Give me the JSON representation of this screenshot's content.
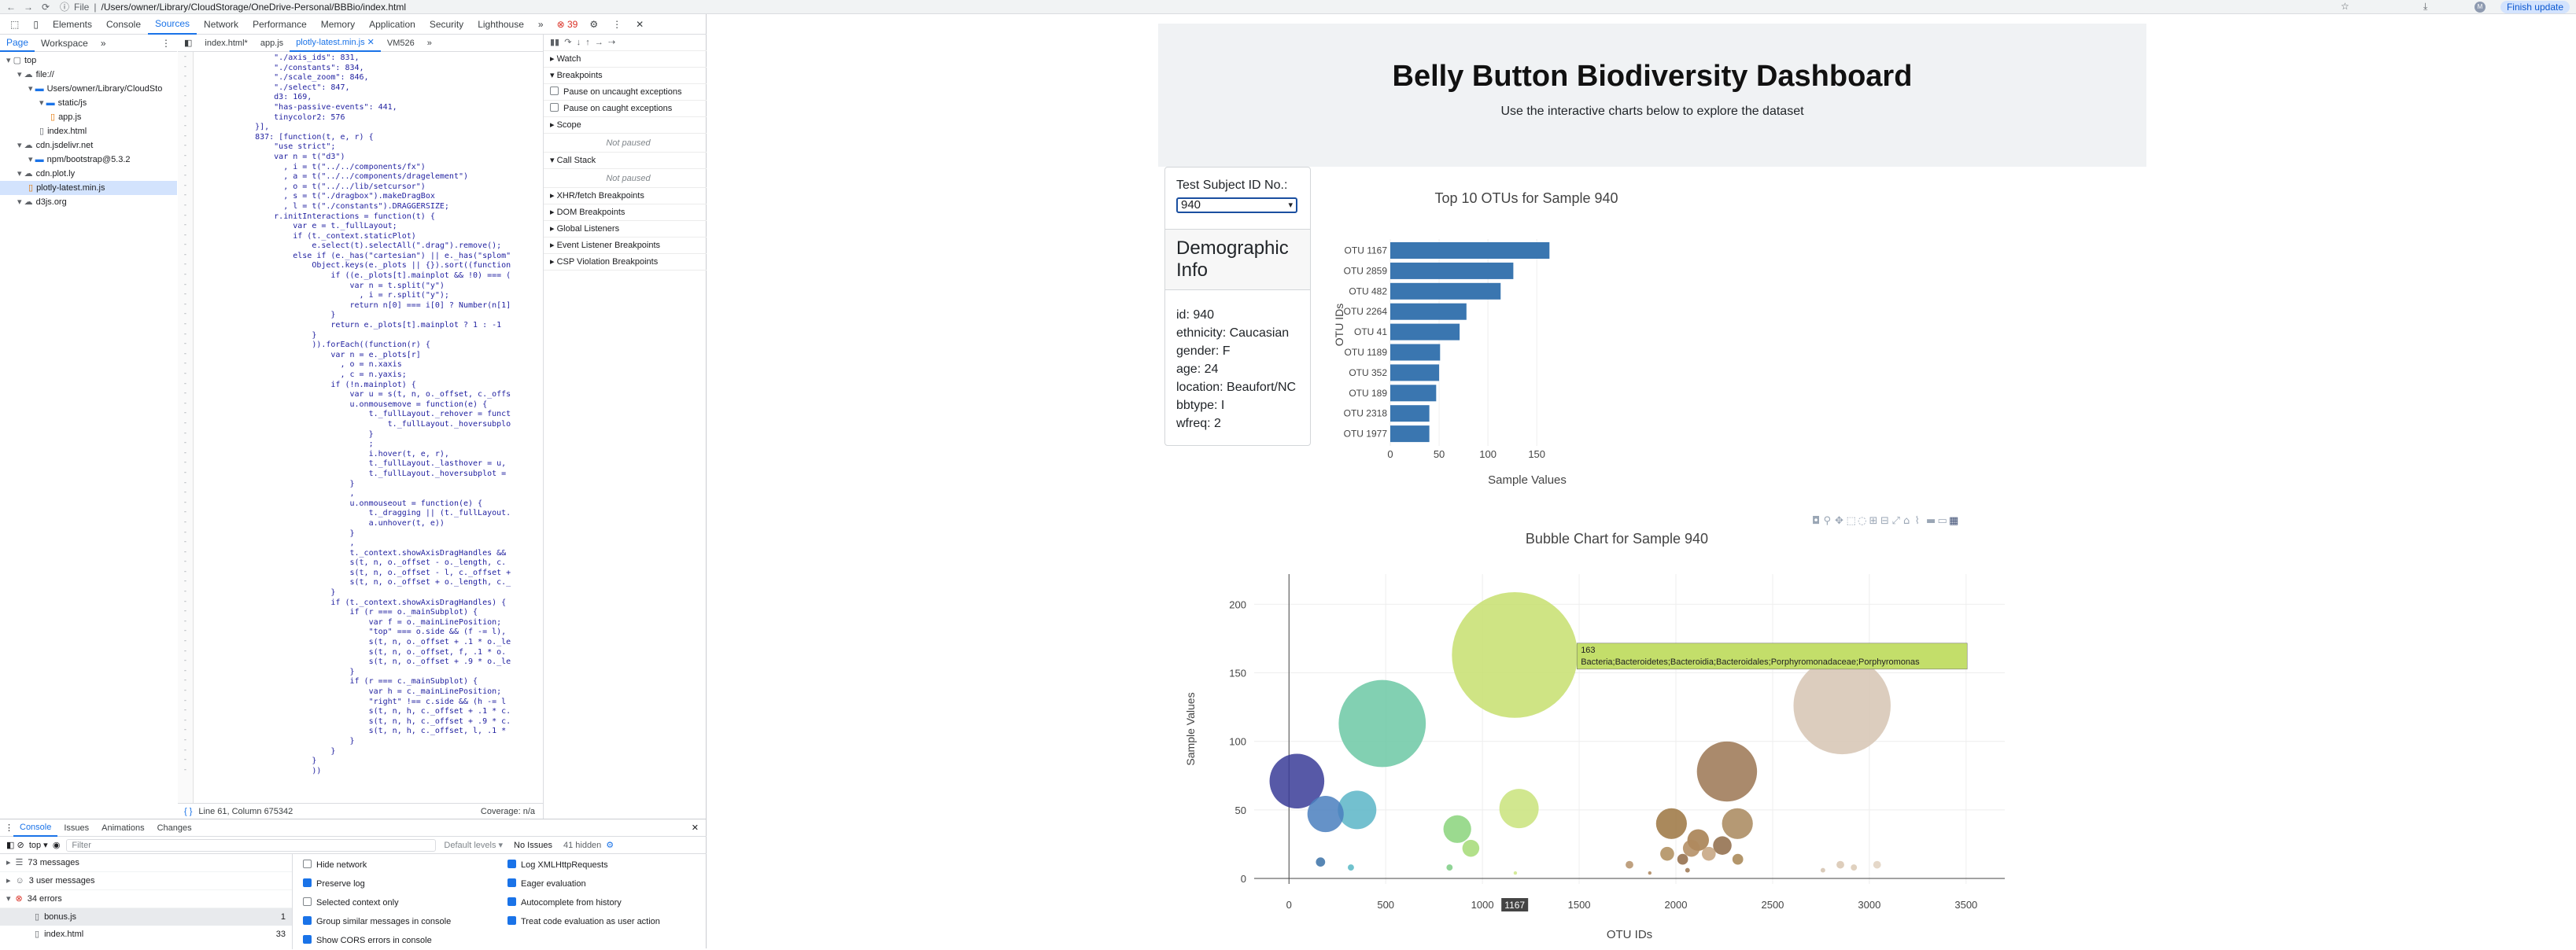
{
  "browser": {
    "nav": [
      "←",
      "→",
      "⟳"
    ],
    "file_label": "File",
    "url": "/Users/owner/Library/CloudStorage/OneDrive-Personal/BBBio/index.html",
    "finish_update": "Finish update",
    "avatar": "M"
  },
  "devtools": {
    "tabs": [
      "Elements",
      "Console",
      "Sources",
      "Network",
      "Performance",
      "Memory",
      "Application",
      "Security",
      "Lighthouse"
    ],
    "active_tab": "Sources",
    "error_count": "39",
    "more": "»",
    "sub_tabs": [
      "Page",
      "Workspace"
    ],
    "tree": [
      {
        "label": "top",
        "indent": 0,
        "kind": "frame"
      },
      {
        "label": "file://",
        "indent": 1,
        "kind": "cloud"
      },
      {
        "label": "Users/owner/Library/CloudSto",
        "indent": 2,
        "kind": "folder"
      },
      {
        "label": "static/js",
        "indent": 3,
        "kind": "folder"
      },
      {
        "label": "app.js",
        "indent": 4,
        "kind": "js"
      },
      {
        "label": "index.html",
        "indent": 3,
        "kind": "html"
      },
      {
        "label": "cdn.jsdelivr.net",
        "indent": 1,
        "kind": "cloud"
      },
      {
        "label": "npm/bootstrap@5.3.2",
        "indent": 2,
        "kind": "folder"
      },
      {
        "label": "cdn.plot.ly",
        "indent": 1,
        "kind": "cloud"
      },
      {
        "label": "plotly-latest.min.js",
        "indent": 2,
        "kind": "js"
      },
      {
        "label": "d3js.org",
        "indent": 1,
        "kind": "cloud"
      }
    ],
    "editor_tabs": [
      "index.html*",
      "app.js",
      "plotly-latest.min.js",
      "VM526"
    ],
    "active_editor_tab": "plotly-latest.min.js",
    "code_lines": [
      "        \"./axis_ids\": 831,",
      "        \"./constants\": 834,",
      "        \"./scale_zoom\": 846,",
      "        \"./select\": 847,",
      "        d3: 169,",
      "        \"has-passive-events\": 441,",
      "        tinycolor2: 576",
      "    }],",
      "    837: [function(t, e, r) {",
      "        \"use strict\";",
      "        var n = t(\"d3\")",
      "          , i = t(\"../../components/fx\")",
      "          , a = t(\"../../components/dragelement\")",
      "          , o = t(\"../../lib/setcursor\")",
      "          , s = t(\"./dragbox\").makeDragBox",
      "          , l = t(\"./constants\").DRAGGERSIZE;",
      "        r.initInteractions = function(t) {",
      "            var e = t._fullLayout;",
      "            if (t._context.staticPlot)",
      "                e.select(t).selectAll(\".drag\").remove();",
      "            else if (e._has(\"cartesian\") || e._has(\"splom\"",
      "                Object.keys(e._plots || {}).sort((function",
      "                    if ((e._plots[t].mainplot && !0) === (",
      "                        var n = t.split(\"y\")",
      "                          , i = r.split(\"y\");",
      "                        return n[0] === i[0] ? Number(n[1]",
      "                    }",
      "                    return e._plots[t].mainplot ? 1 : -1",
      "                }",
      "                )).forEach((function(r) {",
      "                    var n = e._plots[r]",
      "                      , o = n.xaxis",
      "                      , c = n.yaxis;",
      "                    if (!n.mainplot) {",
      "                        var u = s(t, n, o._offset, c._offs",
      "                        u.onmousemove = function(e) {",
      "                            t._fullLayout._rehover = funct",
      "                                t._fullLayout._hoversubplo",
      "                            }",
      "                            ;",
      "                            i.hover(t, e, r),",
      "                            t._fullLayout._lasthover = u,",
      "                            t._fullLayout._hoversubplot =",
      "                        }",
      "                        ,",
      "                        u.onmouseout = function(e) {",
      "                            t._dragging || (t._fullLayout.",
      "                            a.unhover(t, e))",
      "                        }",
      "                        ,",
      "                        t._context.showAxisDragHandles &&",
      "                        s(t, n, o._offset - o._length, c.",
      "                        s(t, n, o._offset - l, c._offset +",
      "                        s(t, n, o._offset + o._length, c._",
      "                    }",
      "                    if (t._context.showAxisDragHandles) {",
      "                        if (r === o._mainSubplot) {",
      "                            var f = o._mainLinePosition;",
      "                            \"top\" === o.side && (f -= l),",
      "                            s(t, n, o._offset + .1 * o._le",
      "                            s(t, n, o._offset, f, .1 * o.",
      "                            s(t, n, o._offset + .9 * o._le",
      "                        }",
      "                        if (r === c._mainSubplot) {",
      "                            var h = c._mainLinePosition;",
      "                            \"right\" !== c.side && (h -= l",
      "                            s(t, n, h, c._offset + .1 * c.",
      "                            s(t, n, h, c._offset + .9 * c.",
      "                            s(t, n, h, c._offset, l, .1 *",
      "                        }",
      "                    }",
      "                }",
      "                ))"
    ],
    "status_position": "Line 61, Column 675342",
    "status_coverage": "Coverage: n/a",
    "debugger": {
      "watch": "Watch",
      "breakpoints": "Breakpoints",
      "pause_uncaught": "Pause on uncaught exceptions",
      "pause_caught": "Pause on caught exceptions",
      "scope": "Scope",
      "not_paused": "Not paused",
      "call_stack": "Call Stack",
      "extra": [
        "XHR/fetch Breakpoints",
        "DOM Breakpoints",
        "Global Listeners",
        "Event Listener Breakpoints",
        "CSP Violation Breakpoints"
      ]
    },
    "drawer": {
      "tabs": [
        "Console",
        "Issues",
        "Animations",
        "Changes"
      ],
      "context": "top",
      "filter_placeholder": "Filter",
      "levels": "Default levels",
      "issues": "No Issues",
      "hidden": "41 hidden",
      "groups": [
        {
          "label": "73 messages",
          "kind": "list"
        },
        {
          "label": "3 user messages",
          "kind": "user"
        },
        {
          "label": "34 errors",
          "kind": "error"
        }
      ],
      "files": [
        {
          "name": "bonus.js",
          "count": "1"
        },
        {
          "name": "index.html",
          "count": "33"
        }
      ],
      "options_left": [
        {
          "label": "Hide network",
          "on": false
        },
        {
          "label": "Preserve log",
          "on": true
        },
        {
          "label": "Selected context only",
          "on": false
        },
        {
          "label": "Group similar messages in console",
          "on": true
        },
        {
          "label": "Show CORS errors in console",
          "on": true
        }
      ],
      "options_right": [
        {
          "label": "Log XMLHttpRequests",
          "on": true
        },
        {
          "label": "Eager evaluation",
          "on": true
        },
        {
          "label": "Autocomplete from history",
          "on": true
        },
        {
          "label": "Treat code evaluation as user action",
          "on": true
        }
      ]
    }
  },
  "dashboard": {
    "title": "Belly Button Biodiversity Dashboard",
    "subtitle": "Use the interactive charts below to explore the dataset",
    "select_label": "Test Subject ID No.:",
    "selected_id": "940",
    "demo_heading": "Demographic Info",
    "demo_lines": [
      "id: 940",
      "ethnicity: Caucasian",
      "gender: F",
      "age: 24",
      "location: Beaufort/NC",
      "bbtype: I",
      "wfreq: 2"
    ]
  },
  "chart_data": [
    {
      "type": "bar",
      "orientation": "h",
      "title": "Top 10 OTUs for Sample 940",
      "xlabel": "Sample Values",
      "ylabel": "OTU IDs",
      "categories": [
        "OTU 1167",
        "OTU 2859",
        "OTU 482",
        "OTU 2264",
        "OTU 41",
        "OTU 1189",
        "OTU 352",
        "OTU 189",
        "OTU 2318",
        "OTU 1977"
      ],
      "values": [
        163,
        126,
        113,
        78,
        71,
        51,
        50,
        47,
        40,
        40
      ],
      "xlim": [
        0,
        170
      ],
      "xticks": [
        0,
        50,
        100,
        150
      ],
      "color": "#3a76b0"
    },
    {
      "type": "scatter",
      "mode": "bubble",
      "title": "Bubble Chart for Sample 940",
      "xlabel": "OTU IDs",
      "ylabel": "Sample Values",
      "xlim": [
        -180,
        3700
      ],
      "ylim": [
        -4,
        222
      ],
      "xticks": [
        0,
        500,
        1000,
        1500,
        2000,
        2500,
        3000,
        3500
      ],
      "yticks": [
        0,
        50,
        100,
        150,
        200
      ],
      "x": [
        1167,
        2859,
        482,
        2264,
        41,
        1189,
        352,
        189,
        2318,
        1977,
        2115,
        2240,
        2080,
        1955,
        2170,
        2320,
        2035,
        870,
        1760,
        2760,
        2850,
        2920,
        3040,
        163,
        320,
        940,
        830,
        1170,
        2060,
        1865
      ],
      "y": [
        163,
        126,
        113,
        78,
        71,
        51,
        50,
        47,
        40,
        40,
        28,
        24,
        22,
        18,
        18,
        14,
        14,
        36,
        10,
        6,
        10,
        8,
        10,
        12,
        8,
        22,
        8,
        4,
        6,
        4
      ],
      "colors": [
        "#c7df6e",
        "#d6c4b3",
        "#6cc8a4",
        "#9b7552",
        "#393c98",
        "#c9e37b",
        "#5ab5c7",
        "#4a7fbe",
        "#a8875c",
        "#9b7440",
        "#a37a4a",
        "#8e6a46",
        "#b08a5e",
        "#ae8c5a",
        "#c4a27e",
        "#a68451",
        "#8f6944",
        "#8ad47b",
        "#b4916a",
        "#d4c2ae",
        "#d8c6b0",
        "#dbc9b4",
        "#e1d1c0",
        "#3a71a7",
        "#57b7c4",
        "#a5db75",
        "#7ccd84",
        "#cee788",
        "#9c7650",
        "#ab845a"
      ],
      "hover": {
        "value": "163",
        "label": "Bacteria;Bacteroidetes;Bacteroidia;Bacteroidales;Porphyromonadaceae;Porphyromonas",
        "xtag": "1167"
      }
    }
  ]
}
